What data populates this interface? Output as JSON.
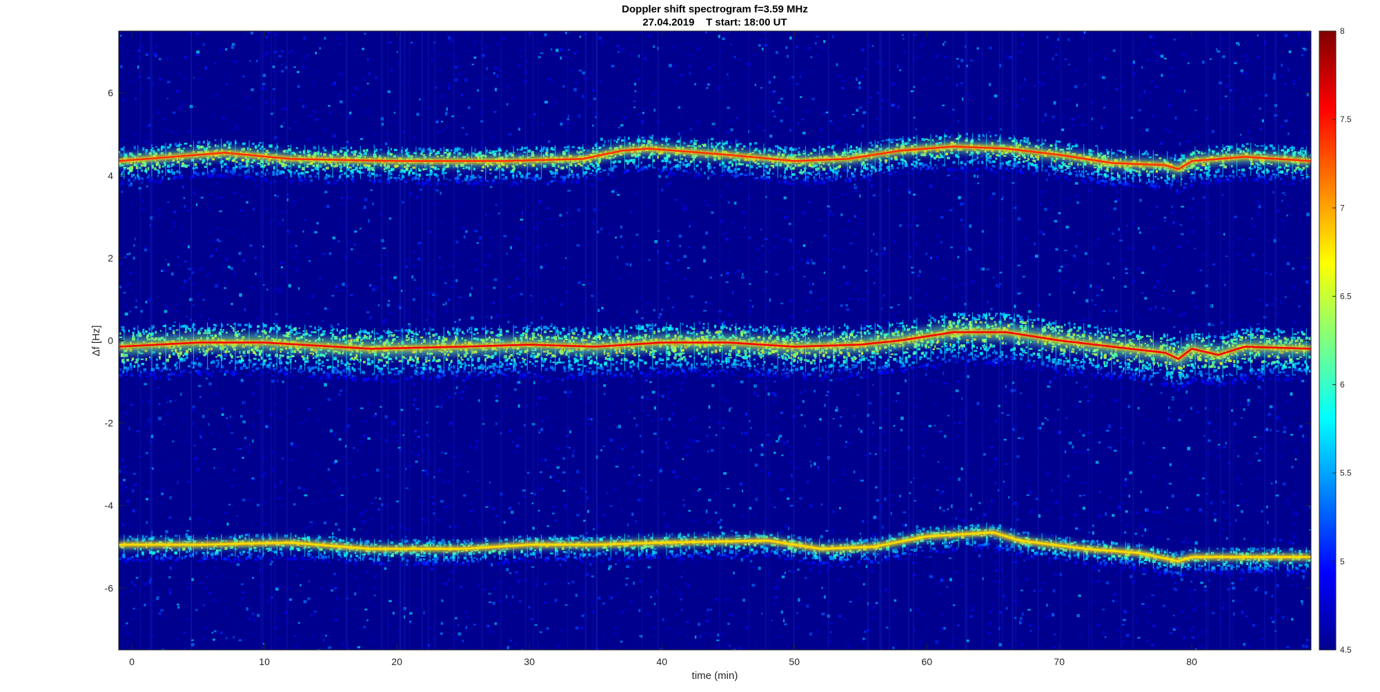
{
  "chart_data": {
    "type": "heatmap",
    "title": "Doppler shift spectrogram f=3.59 MHz",
    "subtitle": "27.04.2019    T start: 18:00 UT",
    "xlabel": "time (min)",
    "ylabel": "Δf [Hz]",
    "xlim": [
      -1,
      89
    ],
    "ylim": [
      -7.5,
      7.5
    ],
    "xticks": [
      0,
      10,
      20,
      30,
      40,
      50,
      60,
      70,
      80
    ],
    "yticks": [
      -6,
      -4,
      -2,
      0,
      2,
      4,
      6
    ],
    "colormap": "jet",
    "clim": [
      4.5,
      8
    ],
    "colorbar_ticks": [
      4.5,
      5,
      5.5,
      6,
      6.5,
      7,
      7.5,
      8
    ],
    "background_color": "#00008f",
    "traces": [
      {
        "points": [
          [
            -1,
            4.35
          ],
          [
            5,
            4.5
          ],
          [
            7,
            4.55
          ],
          [
            12,
            4.4
          ],
          [
            20,
            4.35
          ],
          [
            28,
            4.35
          ],
          [
            34,
            4.4
          ],
          [
            37,
            4.6
          ],
          [
            39,
            4.65
          ],
          [
            41,
            4.6
          ],
          [
            45,
            4.5
          ],
          [
            50,
            4.35
          ],
          [
            54,
            4.4
          ],
          [
            58,
            4.6
          ],
          [
            62,
            4.7
          ],
          [
            66,
            4.65
          ],
          [
            70,
            4.5
          ],
          [
            74,
            4.3
          ],
          [
            78,
            4.25
          ],
          [
            79,
            4.15
          ],
          [
            80,
            4.35
          ],
          [
            84,
            4.45
          ],
          [
            89,
            4.35
          ]
        ],
        "intensity": 7.4
      },
      {
        "points": [
          [
            -1,
            -0.15
          ],
          [
            5,
            -0.05
          ],
          [
            10,
            -0.05
          ],
          [
            18,
            -0.2
          ],
          [
            25,
            -0.15
          ],
          [
            30,
            -0.1
          ],
          [
            35,
            -0.15
          ],
          [
            40,
            -0.05
          ],
          [
            45,
            -0.05
          ],
          [
            50,
            -0.15
          ],
          [
            55,
            -0.1
          ],
          [
            58,
            0.0
          ],
          [
            62,
            0.2
          ],
          [
            66,
            0.2
          ],
          [
            70,
            0.0
          ],
          [
            74,
            -0.15
          ],
          [
            78,
            -0.3
          ],
          [
            79,
            -0.45
          ],
          [
            80,
            -0.2
          ],
          [
            82,
            -0.35
          ],
          [
            84,
            -0.15
          ],
          [
            89,
            -0.2
          ]
        ],
        "intensity": 7.6
      },
      {
        "points": [
          [
            -1,
            -4.95
          ],
          [
            5,
            -4.95
          ],
          [
            12,
            -4.9
          ],
          [
            18,
            -5.05
          ],
          [
            25,
            -5.05
          ],
          [
            30,
            -4.95
          ],
          [
            35,
            -4.95
          ],
          [
            40,
            -4.9
          ],
          [
            48,
            -4.85
          ],
          [
            52,
            -5.05
          ],
          [
            56,
            -5.0
          ],
          [
            60,
            -4.75
          ],
          [
            65,
            -4.65
          ],
          [
            67,
            -4.85
          ],
          [
            72,
            -5.05
          ],
          [
            76,
            -5.15
          ],
          [
            79,
            -5.35
          ],
          [
            80,
            -5.25
          ],
          [
            82,
            -5.25
          ],
          [
            86,
            -5.25
          ],
          [
            89,
            -5.25
          ]
        ],
        "intensity": 6.8
      }
    ]
  }
}
